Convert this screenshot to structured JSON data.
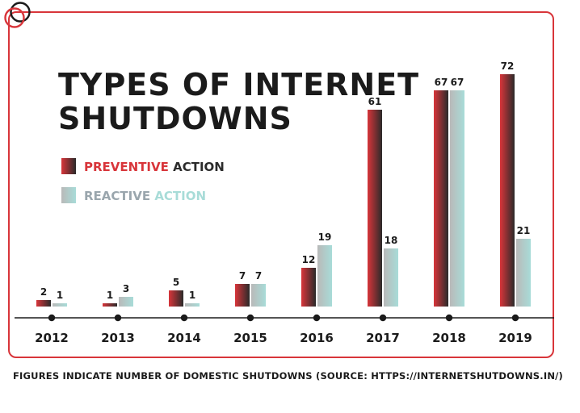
{
  "colors": {
    "frame": "#d8353a",
    "preventive_dark": "#2a2a2a",
    "preventive_red": "#d8353a",
    "reactive_gray": "#b9b9b9",
    "reactive_teal": "#a8dcd8",
    "preventive_label": "#d8353a",
    "reactive_label": "#9aa6ad",
    "action_label": "#2b2b2b"
  },
  "chart_data": {
    "type": "bar",
    "title_lines": [
      "TYPES OF INTERNET",
      "SHUTDOWNS"
    ],
    "categories": [
      "2012",
      "2013",
      "2014",
      "2015",
      "2016",
      "2017",
      "2018",
      "2019"
    ],
    "series": [
      {
        "name": "PREVENTIVE ACTION",
        "label_main": "PREVENTIVE",
        "label_rest": " ACTION",
        "values": [
          2,
          1,
          5,
          7,
          12,
          61,
          67,
          72
        ]
      },
      {
        "name": "REACTIVE ACTION",
        "label_main": "REACTIVE",
        "label_rest": " ACTION",
        "values": [
          1,
          3,
          1,
          7,
          19,
          18,
          67,
          21
        ]
      }
    ],
    "legend_position": "top-left",
    "grid": false
  },
  "footnote": "FIGURES INDICATE NUMBER OF DOMESTIC SHUTDOWNS (SOURCE: HTTPS://INTERNETSHUTDOWNS.IN/)"
}
